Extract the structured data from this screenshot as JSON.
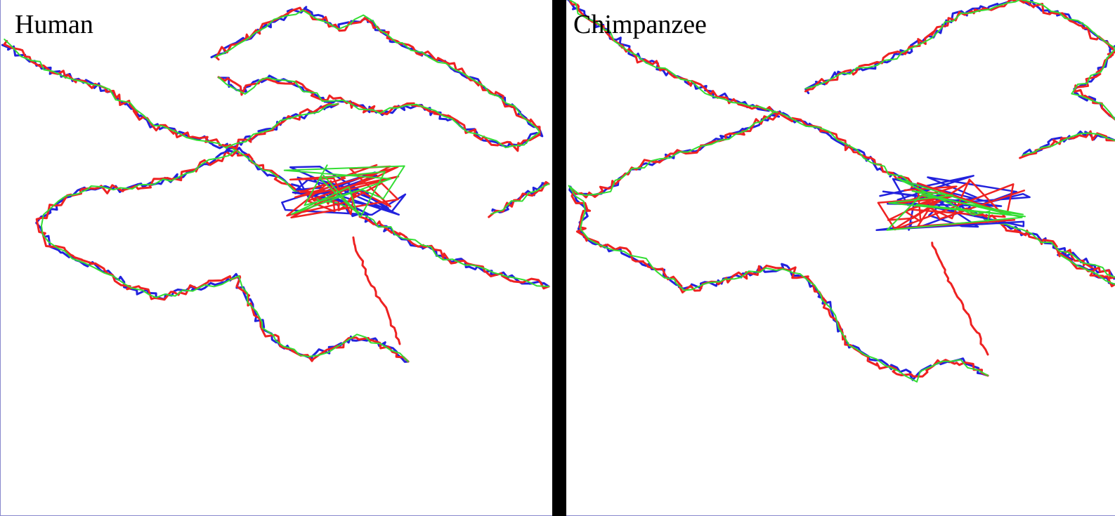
{
  "panels": [
    {
      "label": "Human",
      "seed": 7,
      "colors": {
        "a": "#2222dd",
        "b": "#ee2222",
        "c": "#33dd33"
      },
      "path": [
        [
          5,
          60
        ],
        [
          40,
          85
        ],
        [
          90,
          108
        ],
        [
          140,
          122
        ],
        [
          180,
          148
        ],
        [
          215,
          178
        ],
        [
          255,
          190
        ],
        [
          295,
          200
        ],
        [
          330,
          212
        ],
        [
          360,
          232
        ],
        [
          395,
          255
        ],
        [
          430,
          275
        ],
        [
          465,
          285
        ],
        [
          500,
          300
        ],
        [
          540,
          320
        ],
        [
          575,
          340
        ],
        [
          610,
          355
        ],
        [
          645,
          372
        ],
        [
          690,
          385
        ],
        [
          735,
          398
        ],
        [
          780,
          408
        ]
      ],
      "loop": [
        [
          335,
          215
        ],
        [
          300,
          230
        ],
        [
          260,
          250
        ],
        [
          215,
          262
        ],
        [
          170,
          270
        ],
        [
          120,
          268
        ],
        [
          80,
          290
        ],
        [
          55,
          318
        ],
        [
          70,
          345
        ],
        [
          90,
          360
        ],
        [
          120,
          375
        ],
        [
          150,
          385
        ],
        [
          185,
          410
        ],
        [
          225,
          425
        ],
        [
          260,
          415
        ],
        [
          300,
          405
        ],
        [
          335,
          395
        ],
        [
          355,
          430
        ],
        [
          375,
          470
        ],
        [
          405,
          495
        ],
        [
          440,
          510
        ],
        [
          475,
          495
        ],
        [
          505,
          480
        ],
        [
          540,
          488
        ],
        [
          580,
          515
        ]
      ],
      "spike": [
        [
          500,
          340
        ],
        [
          525,
          400
        ],
        [
          550,
          445
        ],
        [
          568,
          490
        ]
      ],
      "blob": {
        "cx": 490,
        "cy": 272,
        "rx": 90,
        "ry": 38
      },
      "cluster": [
        [
          305,
          80
        ],
        [
          350,
          55
        ],
        [
          390,
          30
        ],
        [
          430,
          12
        ],
        [
          480,
          40
        ],
        [
          520,
          25
        ],
        [
          560,
          60
        ],
        [
          610,
          80
        ],
        [
          660,
          105
        ],
        [
          700,
          130
        ],
        [
          740,
          160
        ],
        [
          770,
          190
        ],
        [
          730,
          210
        ],
        [
          690,
          200
        ],
        [
          640,
          170
        ],
        [
          590,
          150
        ],
        [
          540,
          160
        ],
        [
          500,
          150
        ],
        [
          460,
          140
        ],
        [
          420,
          120
        ],
        [
          380,
          110
        ],
        [
          345,
          130
        ],
        [
          310,
          110
        ]
      ],
      "arm": [
        [
          320,
          212
        ],
        [
          360,
          195
        ],
        [
          400,
          175
        ],
        [
          440,
          160
        ],
        [
          480,
          148
        ]
      ],
      "side": [
        [
          700,
          305
        ],
        [
          730,
          290
        ],
        [
          760,
          270
        ],
        [
          780,
          262
        ]
      ]
    },
    {
      "label": "Chimpanzee",
      "seed": 11,
      "colors": {
        "a": "#2222dd",
        "b": "#ee2222",
        "c": "#33dd33"
      },
      "path": [
        [
          0,
          0
        ],
        [
          50,
          40
        ],
        [
          100,
          80
        ],
        [
          150,
          105
        ],
        [
          200,
          130
        ],
        [
          250,
          148
        ],
        [
          290,
          158
        ],
        [
          330,
          172
        ],
        [
          370,
          190
        ],
        [
          410,
          215
        ],
        [
          450,
          240
        ],
        [
          500,
          268
        ],
        [
          550,
          290
        ],
        [
          600,
          310
        ],
        [
          650,
          330
        ],
        [
          700,
          355
        ],
        [
          750,
          378
        ],
        [
          781,
          395
        ]
      ],
      "loop": [
        [
          298,
          162
        ],
        [
          265,
          178
        ],
        [
          230,
          195
        ],
        [
          190,
          210
        ],
        [
          150,
          222
        ],
        [
          110,
          235
        ],
        [
          80,
          252
        ],
        [
          60,
          270
        ],
        [
          30,
          280
        ],
        [
          5,
          268
        ],
        [
          30,
          300
        ],
        [
          20,
          330
        ],
        [
          45,
          350
        ],
        [
          80,
          360
        ],
        [
          110,
          372
        ],
        [
          140,
          392
        ],
        [
          170,
          412
        ],
        [
          205,
          405
        ],
        [
          240,
          395
        ],
        [
          275,
          385
        ],
        [
          310,
          380
        ],
        [
          345,
          400
        ],
        [
          375,
          440
        ],
        [
          400,
          490
        ],
        [
          440,
          515
        ],
        [
          470,
          525
        ],
        [
          495,
          540
        ],
        [
          520,
          520
        ],
        [
          560,
          515
        ],
        [
          600,
          535
        ]
      ],
      "spike": [
        [
          520,
          345
        ],
        [
          545,
          400
        ],
        [
          575,
          455
        ],
        [
          600,
          505
        ]
      ],
      "blob": {
        "cx": 550,
        "cy": 290,
        "rx": 110,
        "ry": 40
      },
      "cluster": [
        [
          340,
          130
        ],
        [
          380,
          108
        ],
        [
          430,
          95
        ],
        [
          480,
          75
        ],
        [
          520,
          50
        ],
        [
          560,
          20
        ],
        [
          600,
          10
        ],
        [
          650,
          0
        ],
        [
          700,
          20
        ],
        [
          740,
          40
        ],
        [
          781,
          70
        ],
        [
          750,
          110
        ],
        [
          720,
          130
        ],
        [
          760,
          150
        ],
        [
          781,
          170
        ]
      ],
      "arm": [
        [
          650,
          220
        ],
        [
          690,
          205
        ],
        [
          730,
          190
        ],
        [
          781,
          200
        ]
      ],
      "side": [
        [
          700,
          360
        ],
        [
          740,
          385
        ],
        [
          781,
          405
        ]
      ]
    }
  ]
}
